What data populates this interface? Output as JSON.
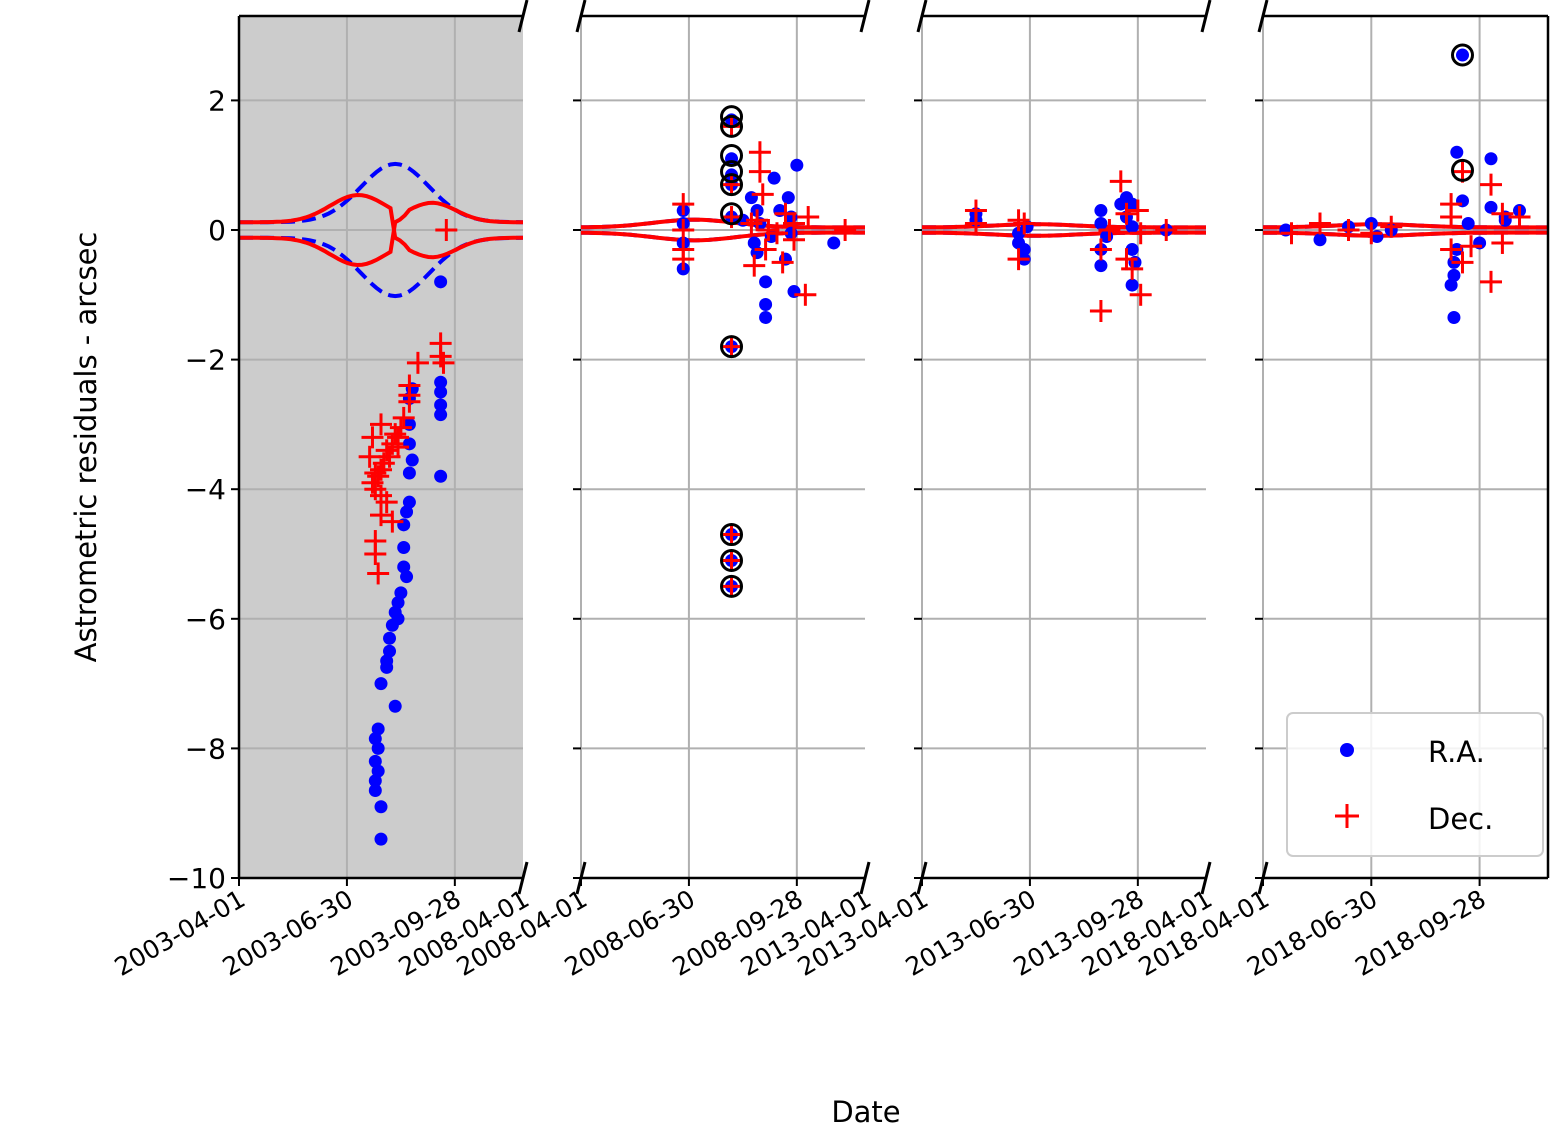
{
  "chart_data": {
    "type": "scatter",
    "title": "",
    "xlabel": "Date",
    "ylabel": "Astrometric residuals - arcsec",
    "ylim": [
      -10,
      3.3
    ],
    "yticks": [
      2,
      0,
      -2,
      -4,
      -6,
      -8,
      -10
    ],
    "ytick_labels": [
      "2",
      "0",
      "−2",
      "−4",
      "−6",
      "−8",
      "−10"
    ],
    "grid": true,
    "broken_x_axis": true,
    "legend": {
      "position": "lower right of last panel",
      "entries": [
        {
          "label": "R.A.",
          "marker": "dot",
          "color": "#0000ff"
        },
        {
          "label": "Dec.",
          "marker": "plus",
          "color": "#ff0000"
        }
      ]
    },
    "colors": {
      "ra": "#0000ff",
      "dec": "#ff0000",
      "excluded_circle": "#000000",
      "shaded_panel_bg": "#cccccc",
      "grid": "#b0b0b0"
    },
    "panels": [
      {
        "name": "2003",
        "shaded": true,
        "xticks": [
          "2003-04-01",
          "2003-06-30",
          "2003-09-28",
          "2008-04-01"
        ],
        "uncertainty_envelope": {
          "description": "RA (dashed blue) and Dec (solid red) 1-sigma envelopes",
          "ra_peak": 1.0,
          "dec_peak": 0.5
        },
        "ra_points": [
          [
            0.71,
            -0.8
          ],
          [
            0.71,
            -2.35
          ],
          [
            0.71,
            -2.5
          ],
          [
            0.71,
            -2.7
          ],
          [
            0.71,
            -2.85
          ],
          [
            0.71,
            -3.8
          ],
          [
            0.61,
            -2.45
          ],
          [
            0.6,
            -2.6
          ],
          [
            0.6,
            -3.0
          ],
          [
            0.6,
            -3.3
          ],
          [
            0.61,
            -3.55
          ],
          [
            0.6,
            -3.75
          ],
          [
            0.6,
            -4.2
          ],
          [
            0.59,
            -4.35
          ],
          [
            0.58,
            -4.55
          ],
          [
            0.58,
            -4.9
          ],
          [
            0.58,
            -5.2
          ],
          [
            0.59,
            -5.35
          ],
          [
            0.57,
            -5.6
          ],
          [
            0.56,
            -5.75
          ],
          [
            0.55,
            -5.9
          ],
          [
            0.56,
            -6.0
          ],
          [
            0.54,
            -6.1
          ],
          [
            0.53,
            -6.3
          ],
          [
            0.53,
            -6.5
          ],
          [
            0.52,
            -6.65
          ],
          [
            0.52,
            -6.75
          ],
          [
            0.5,
            -7.0
          ],
          [
            0.55,
            -7.35
          ],
          [
            0.49,
            -7.7
          ],
          [
            0.48,
            -7.85
          ],
          [
            0.49,
            -8.0
          ],
          [
            0.48,
            -8.2
          ],
          [
            0.49,
            -8.35
          ],
          [
            0.48,
            -8.5
          ],
          [
            0.48,
            -8.65
          ],
          [
            0.5,
            -8.9
          ],
          [
            0.5,
            -9.4
          ]
        ],
        "dec_points": [
          [
            0.73,
            0.0
          ],
          [
            0.71,
            -1.75
          ],
          [
            0.71,
            -1.95
          ],
          [
            0.72,
            -2.05
          ],
          [
            0.63,
            -2.05
          ],
          [
            0.6,
            -2.4
          ],
          [
            0.6,
            -2.55
          ],
          [
            0.6,
            -2.65
          ],
          [
            0.58,
            -2.9
          ],
          [
            0.57,
            -3.05
          ],
          [
            0.56,
            -3.2
          ],
          [
            0.56,
            -3.35
          ],
          [
            0.55,
            -3.15
          ],
          [
            0.54,
            -3.3
          ],
          [
            0.53,
            -3.5
          ],
          [
            0.52,
            -3.4
          ],
          [
            0.51,
            -3.6
          ],
          [
            0.5,
            -3.7
          ],
          [
            0.49,
            -3.8
          ],
          [
            0.48,
            -3.75
          ],
          [
            0.47,
            -3.9
          ],
          [
            0.48,
            -4.0
          ],
          [
            0.5,
            -4.1
          ],
          [
            0.52,
            -4.2
          ],
          [
            0.5,
            -4.4
          ],
          [
            0.54,
            -4.5
          ],
          [
            0.48,
            -4.8
          ],
          [
            0.48,
            -5.0
          ],
          [
            0.49,
            -5.3
          ],
          [
            0.47,
            -3.2
          ],
          [
            0.46,
            -3.5
          ],
          [
            0.5,
            -3.0
          ]
        ]
      },
      {
        "name": "2008",
        "shaded": false,
        "xticks": [
          "2008-04-01",
          "2008-06-30",
          "2008-09-28",
          "2013-04-01"
        ],
        "ra_points": [
          [
            0.36,
            0.3
          ],
          [
            0.36,
            0.1
          ],
          [
            0.36,
            -0.2
          ],
          [
            0.36,
            -0.6
          ],
          [
            0.53,
            1.7
          ],
          [
            0.53,
            1.1
          ],
          [
            0.53,
            0.85
          ],
          [
            0.53,
            0.7
          ],
          [
            0.53,
            0.2
          ],
          [
            0.57,
            0.15
          ],
          [
            0.6,
            0.5
          ],
          [
            0.62,
            0.3
          ],
          [
            0.63,
            0.1
          ],
          [
            0.61,
            -0.2
          ],
          [
            0.62,
            -0.35
          ],
          [
            0.65,
            -0.8
          ],
          [
            0.65,
            -1.15
          ],
          [
            0.65,
            -1.35
          ],
          [
            0.68,
            0.8
          ],
          [
            0.7,
            0.3
          ],
          [
            0.73,
            0.5
          ],
          [
            0.74,
            -0.05
          ],
          [
            0.72,
            -0.45
          ],
          [
            0.75,
            -0.95
          ],
          [
            0.76,
            1.0
          ],
          [
            0.89,
            -0.2
          ],
          [
            0.74,
            0.2
          ],
          [
            0.67,
            -0.1
          ],
          [
            0.53,
            -1.8
          ],
          [
            0.53,
            -4.7
          ],
          [
            0.53,
            -5.1
          ],
          [
            0.53,
            -5.5
          ]
        ],
        "dec_points": [
          [
            0.36,
            0.4
          ],
          [
            0.36,
            0.0
          ],
          [
            0.36,
            -0.3
          ],
          [
            0.36,
            -0.45
          ],
          [
            0.53,
            1.6
          ],
          [
            0.53,
            0.7
          ],
          [
            0.53,
            0.2
          ],
          [
            0.63,
            1.2
          ],
          [
            0.63,
            0.9
          ],
          [
            0.64,
            0.55
          ],
          [
            0.62,
            0.15
          ],
          [
            0.6,
            0.1
          ],
          [
            0.66,
            0.0
          ],
          [
            0.69,
            -0.05
          ],
          [
            0.72,
            0.25
          ],
          [
            0.75,
            0.1
          ],
          [
            0.75,
            -0.15
          ],
          [
            0.71,
            -0.5
          ],
          [
            0.65,
            -0.3
          ],
          [
            0.61,
            -0.55
          ],
          [
            0.79,
            -1.0
          ],
          [
            0.8,
            0.2
          ],
          [
            0.93,
            0.0
          ],
          [
            0.53,
            -1.8
          ],
          [
            0.53,
            -4.7
          ],
          [
            0.53,
            -5.1
          ],
          [
            0.53,
            -5.5
          ]
        ],
        "excluded_circles": [
          [
            0.53,
            1.75
          ],
          [
            0.53,
            1.6
          ],
          [
            0.53,
            1.15
          ],
          [
            0.53,
            0.9
          ],
          [
            0.53,
            0.7
          ],
          [
            0.53,
            0.25
          ],
          [
            0.53,
            -1.8
          ],
          [
            0.53,
            -4.7
          ],
          [
            0.53,
            -5.1
          ],
          [
            0.53,
            -5.5
          ]
        ]
      },
      {
        "name": "2013",
        "shaded": false,
        "xticks": [
          "2013-04-01",
          "2013-06-30",
          "2013-09-28",
          "2018-04-01"
        ],
        "ra_points": [
          [
            0.19,
            0.25
          ],
          [
            0.19,
            0.15
          ],
          [
            0.34,
            -0.05
          ],
          [
            0.34,
            -0.2
          ],
          [
            0.36,
            -0.3
          ],
          [
            0.36,
            -0.45
          ],
          [
            0.37,
            0.05
          ],
          [
            0.63,
            0.3
          ],
          [
            0.63,
            0.1
          ],
          [
            0.63,
            -0.3
          ],
          [
            0.63,
            -0.55
          ],
          [
            0.65,
            -0.1
          ],
          [
            0.7,
            0.4
          ],
          [
            0.72,
            0.5
          ],
          [
            0.74,
            0.4
          ],
          [
            0.72,
            0.2
          ],
          [
            0.74,
            0.05
          ],
          [
            0.74,
            -0.3
          ],
          [
            0.75,
            -0.5
          ],
          [
            0.74,
            -0.85
          ],
          [
            0.86,
            0.0
          ]
        ],
        "dec_points": [
          [
            0.19,
            0.3
          ],
          [
            0.19,
            0.1
          ],
          [
            0.34,
            0.15
          ],
          [
            0.34,
            -0.45
          ],
          [
            0.36,
            0.1
          ],
          [
            0.63,
            -1.25
          ],
          [
            0.63,
            -0.3
          ],
          [
            0.66,
            0.0
          ],
          [
            0.7,
            0.75
          ],
          [
            0.72,
            0.25
          ],
          [
            0.72,
            -0.45
          ],
          [
            0.74,
            -0.6
          ],
          [
            0.77,
            -1.0
          ],
          [
            0.76,
            0.3
          ],
          [
            0.77,
            -0.05
          ],
          [
            0.86,
            0.0
          ]
        ]
      },
      {
        "name": "2018",
        "shaded": false,
        "xticks": [
          "2018-04-01",
          "2018-06-30",
          "2018-09-28"
        ],
        "ra_points": [
          [
            0.08,
            0.0
          ],
          [
            0.2,
            -0.15
          ],
          [
            0.3,
            0.05
          ],
          [
            0.38,
            0.1
          ],
          [
            0.4,
            -0.1
          ],
          [
            0.45,
            0.0
          ],
          [
            0.68,
            1.2
          ],
          [
            0.7,
            0.45
          ],
          [
            0.68,
            -0.3
          ],
          [
            0.67,
            -0.5
          ],
          [
            0.67,
            -0.7
          ],
          [
            0.66,
            -0.85
          ],
          [
            0.67,
            -1.35
          ],
          [
            0.72,
            0.1
          ],
          [
            0.76,
            -0.2
          ],
          [
            0.8,
            1.1
          ],
          [
            0.8,
            0.35
          ],
          [
            0.85,
            0.2
          ],
          [
            0.85,
            0.15
          ],
          [
            0.9,
            0.3
          ],
          [
            0.7,
            2.7
          ]
        ],
        "dec_points": [
          [
            0.1,
            -0.05
          ],
          [
            0.2,
            0.1
          ],
          [
            0.3,
            0.0
          ],
          [
            0.38,
            -0.05
          ],
          [
            0.45,
            0.05
          ],
          [
            0.66,
            0.4
          ],
          [
            0.66,
            0.2
          ],
          [
            0.7,
            0.9
          ],
          [
            0.66,
            -0.3
          ],
          [
            0.7,
            -0.5
          ],
          [
            0.8,
            0.7
          ],
          [
            0.8,
            -0.8
          ],
          [
            0.84,
            0.25
          ],
          [
            0.84,
            -0.2
          ],
          [
            0.9,
            0.2
          ],
          [
            0.73,
            -0.25
          ]
        ],
        "excluded_circles": [
          [
            0.7,
            2.7
          ],
          [
            0.7,
            0.92
          ]
        ]
      }
    ]
  }
}
